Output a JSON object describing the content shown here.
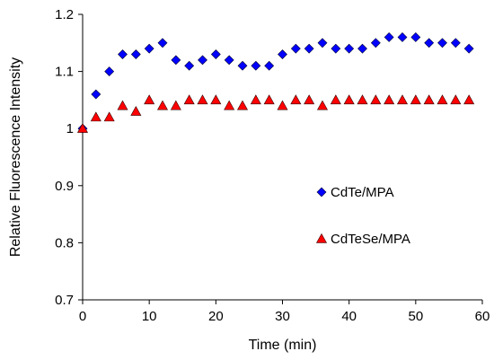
{
  "chart_data": {
    "type": "scatter",
    "title": "",
    "xlabel": "Time (min)",
    "ylabel": "Relative Fluorescence Intensity",
    "xlim": [
      0,
      60
    ],
    "ylim": [
      0.7,
      1.2
    ],
    "xticks": [
      0,
      10,
      20,
      30,
      40,
      50,
      60
    ],
    "yticks": [
      0.7,
      0.8,
      0.9,
      1,
      1.1,
      1.2
    ],
    "xtick_labels": [
      "0",
      "10",
      "20",
      "30",
      "40",
      "50",
      "60"
    ],
    "ytick_labels": [
      "0.7",
      "0.8",
      "0.9",
      "1",
      "1.1",
      "1.2"
    ],
    "grid": false,
    "legend_position": "right-middle",
    "series": [
      {
        "name": "CdTe/MPA",
        "marker": "diamond",
        "color": "#0000ff",
        "x": [
          0,
          2,
          4,
          6,
          8,
          10,
          12,
          14,
          16,
          18,
          20,
          22,
          24,
          26,
          28,
          30,
          32,
          34,
          36,
          38,
          40,
          42,
          44,
          46,
          48,
          50,
          52,
          54,
          56,
          58
        ],
        "y": [
          1.0,
          1.06,
          1.1,
          1.13,
          1.13,
          1.14,
          1.15,
          1.12,
          1.11,
          1.12,
          1.13,
          1.12,
          1.11,
          1.11,
          1.11,
          1.13,
          1.14,
          1.14,
          1.15,
          1.14,
          1.14,
          1.14,
          1.15,
          1.16,
          1.16,
          1.16,
          1.15,
          1.15,
          1.15,
          1.14
        ]
      },
      {
        "name": "CdTeSe/MPA",
        "marker": "triangle",
        "color": "#ff0000",
        "x": [
          0,
          2,
          4,
          6,
          8,
          10,
          12,
          14,
          16,
          18,
          20,
          22,
          24,
          26,
          28,
          30,
          32,
          34,
          36,
          38,
          40,
          42,
          44,
          46,
          48,
          50,
          52,
          54,
          56,
          58
        ],
        "y": [
          1.0,
          1.02,
          1.02,
          1.04,
          1.03,
          1.05,
          1.04,
          1.04,
          1.05,
          1.05,
          1.05,
          1.04,
          1.04,
          1.05,
          1.05,
          1.04,
          1.05,
          1.05,
          1.04,
          1.05,
          1.05,
          1.05,
          1.05,
          1.05,
          1.05,
          1.05,
          1.05,
          1.05,
          1.05,
          1.05
        ]
      }
    ]
  }
}
